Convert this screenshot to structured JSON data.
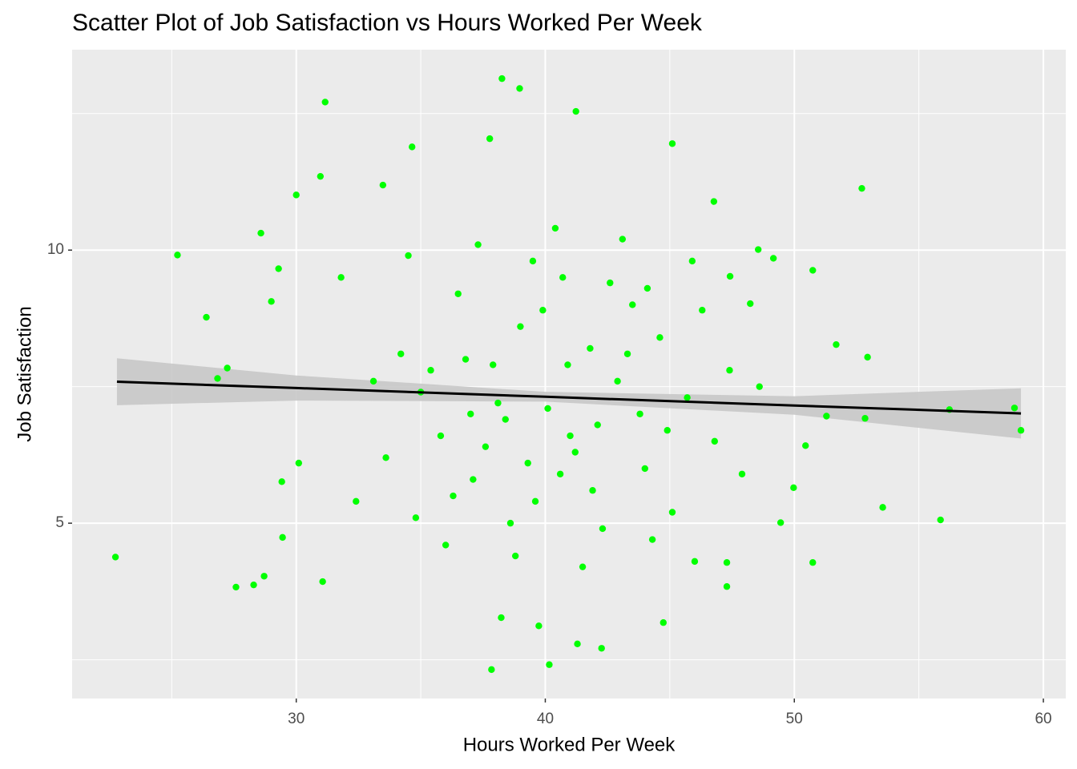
{
  "chart_data": {
    "type": "scatter",
    "title": "Scatter Plot of Job Satisfaction vs Hours Worked Per Week",
    "x_label": "Hours Worked Per Week",
    "y_label": "Job Satisfaction",
    "color": "#00ff00",
    "xlim": [
      21.0,
      60.9
    ],
    "ylim": [
      1.79,
      13.67
    ],
    "xticks": [
      30,
      40,
      50,
      60
    ],
    "yticks": [
      5,
      10
    ],
    "xminor": [
      25,
      35,
      45,
      55
    ],
    "yminor": [
      2.5,
      7.5,
      12.5
    ],
    "grid": true,
    "x": [
      22.74,
      25.23,
      26.39,
      26.84,
      27.23,
      27.58,
      28.29,
      28.71,
      28.58,
      29.0,
      29.29,
      29.42,
      29.45,
      30.0,
      30.1,
      31.16,
      30.97,
      31.06,
      33.48,
      38.26,
      38.97,
      41.23,
      45.1,
      37.77,
      34.65,
      37.84,
      40.16,
      38.23,
      39.74,
      41.29,
      42.26,
      44.74,
      52.71,
      50.74,
      50.74,
      53.55,
      55.87,
      56.23,
      58.84,
      59.1,
      52.94,
      51.68,
      48.55,
      49.16,
      49.45,
      49.97,
      47.42,
      46.77,
      50.45,
      52.84,
      51.29,
      48.23,
      47.29,
      47.29,
      34.2,
      35.0,
      35.8,
      36.5,
      37.1,
      37.9,
      38.4,
      39.0,
      39.6,
      40.1,
      40.7,
      41.2,
      41.8,
      42.3,
      42.9,
      43.5,
      44.0,
      44.6,
      45.1,
      45.7,
      46.3,
      46.8,
      47.4,
      33.6,
      34.8,
      36.0,
      37.3,
      38.8,
      40.4,
      41.5,
      43.1,
      44.3,
      45.9,
      36.8,
      38.1,
      39.3,
      40.9,
      42.1,
      43.8,
      35.4,
      37.6,
      39.9,
      41.9,
      44.9,
      33.1,
      47.9,
      32.4,
      31.8,
      48.6,
      34.5,
      46.0,
      39.5,
      38.6,
      42.6,
      36.3,
      40.6,
      43.3,
      37.0,
      41.0,
      44.1
    ],
    "y": [
      4.38,
      9.91,
      8.77,
      7.65,
      7.84,
      3.83,
      3.87,
      4.03,
      10.31,
      9.06,
      9.66,
      5.76,
      4.74,
      11.01,
      6.1,
      12.71,
      11.35,
      3.93,
      11.19,
      13.14,
      12.96,
      12.54,
      11.95,
      12.04,
      11.89,
      2.32,
      2.41,
      3.27,
      3.12,
      2.79,
      2.71,
      3.18,
      11.13,
      9.63,
      4.28,
      5.29,
      5.06,
      7.08,
      7.11,
      6.7,
      8.04,
      8.27,
      10.01,
      9.85,
      5.01,
      5.65,
      9.52,
      10.89,
      6.42,
      6.92,
      6.96,
      9.02,
      3.84,
      4.28,
      8.1,
      7.4,
      6.6,
      9.2,
      5.8,
      7.9,
      6.9,
      8.6,
      5.4,
      7.1,
      9.5,
      6.3,
      8.2,
      4.9,
      7.6,
      9.0,
      6.0,
      8.4,
      5.2,
      7.3,
      8.9,
      6.5,
      7.8,
      6.2,
      5.1,
      4.6,
      10.1,
      4.4,
      10.4,
      4.2,
      10.2,
      4.7,
      9.8,
      8.0,
      7.2,
      6.1,
      7.9,
      6.8,
      7.0,
      7.8,
      6.4,
      8.9,
      5.6,
      6.7,
      7.6,
      5.9,
      5.4,
      9.5,
      7.5,
      9.9,
      4.3,
      9.8,
      5.0,
      9.4,
      5.5,
      5.9,
      8.1,
      7.0,
      6.6,
      9.3
    ],
    "smooth": {
      "color": "#000000",
      "band_color": "#c8c8c8",
      "x": [
        22.8,
        30,
        40,
        50,
        59.1
      ],
      "y": [
        7.59,
        7.475,
        7.315,
        7.155,
        7.01
      ],
      "lower": [
        7.16,
        7.245,
        7.225,
        6.985,
        6.55
      ],
      "upper": [
        8.02,
        7.705,
        7.405,
        7.325,
        7.47
      ]
    }
  }
}
